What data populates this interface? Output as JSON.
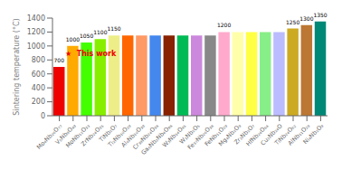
{
  "chart_data": {
    "type": "bar",
    "categories": [
      "Mo₄Nb₂₆O₇₇",
      "V₅Nb₉O₄₉",
      "MoNb₁₂O₃₃",
      "ZrNb₂₄O₃₅",
      "TiNb₂O₇",
      "Ti₂Nb₁₀O₂₉",
      "Al₆Nb₁₀O₃₉",
      "Cr₃₉Nb₂₄O₃₈",
      "Ga₆Nb₂Nb₄O₉₈",
      "W₃Nb₁₄O₄₅",
      "W₁Nb₂O₅",
      "Fe₃₇Nb₂₆O₃₈",
      "FeNb₁₁O₂₉",
      "Mg₄Nb₂O₉",
      "Zr₂Nb₂O₇",
      "HfNb₂₄O₆₄",
      "Cu₂Nb₂₄O",
      "TiNb₂₄O₆₂",
      "AlNb₁₁O₂₉",
      "Ni₄Nb₂O₉"
    ],
    "values": [
      700,
      1000,
      1050,
      1100,
      1150,
      1150,
      1150,
      1150,
      1150,
      1150,
      1150,
      1150,
      1200,
      1200,
      1200,
      1200,
      1200,
      1250,
      1300,
      1350
    ],
    "colors": [
      "#ee0000",
      "#ffaa00",
      "#44ff00",
      "#88ee00",
      "#eeee88",
      "#ff6600",
      "#ff9966",
      "#4488ee",
      "#882200",
      "#00bb55",
      "#cc88dd",
      "#888888",
      "#ffaacc",
      "#ffffaa",
      "#ffff44",
      "#88ee88",
      "#bbbbff",
      "#ccaa22",
      "#bb7733",
      "#008877"
    ],
    "value_labels": [
      "700",
      "1000",
      "1050",
      "1100",
      "1150",
      null,
      null,
      null,
      null,
      null,
      null,
      null,
      "1200",
      null,
      null,
      null,
      null,
      "1250",
      "1300",
      "1350"
    ],
    "ylabel": "Sintering temperature (°C)",
    "ylim": [
      0,
      1400
    ],
    "yticks": [
      0,
      200,
      400,
      600,
      800,
      1000,
      1200,
      1400
    ],
    "annotations": [
      {
        "text": "★  This work",
        "color": "#ee0000"
      }
    ]
  }
}
